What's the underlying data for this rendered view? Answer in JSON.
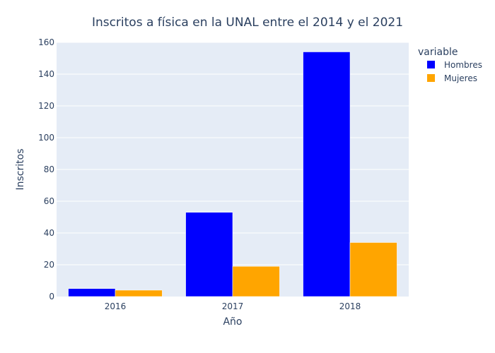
{
  "chart_data": {
    "type": "bar",
    "title": "Inscritos a física en la UNAL entre el 2014 y el 2021",
    "xlabel": "Año",
    "ylabel": "Inscritos",
    "categories": [
      "2016",
      "2017",
      "2018"
    ],
    "ylim": [
      0,
      160
    ],
    "yticks": [
      0,
      20,
      40,
      60,
      80,
      100,
      120,
      140,
      160
    ],
    "grid": true,
    "legend_title": "variable",
    "legend_position": "top-right",
    "series": [
      {
        "name": "Hombres",
        "color": "#0000ff",
        "values": [
          5,
          53,
          154
        ]
      },
      {
        "name": "Mujeres",
        "color": "#ffa500",
        "values": [
          4,
          19,
          34
        ]
      }
    ]
  },
  "colors": {
    "plot_background": "#e5ecf6",
    "gridline": "#ffffff",
    "text": "#2a3f5f"
  }
}
